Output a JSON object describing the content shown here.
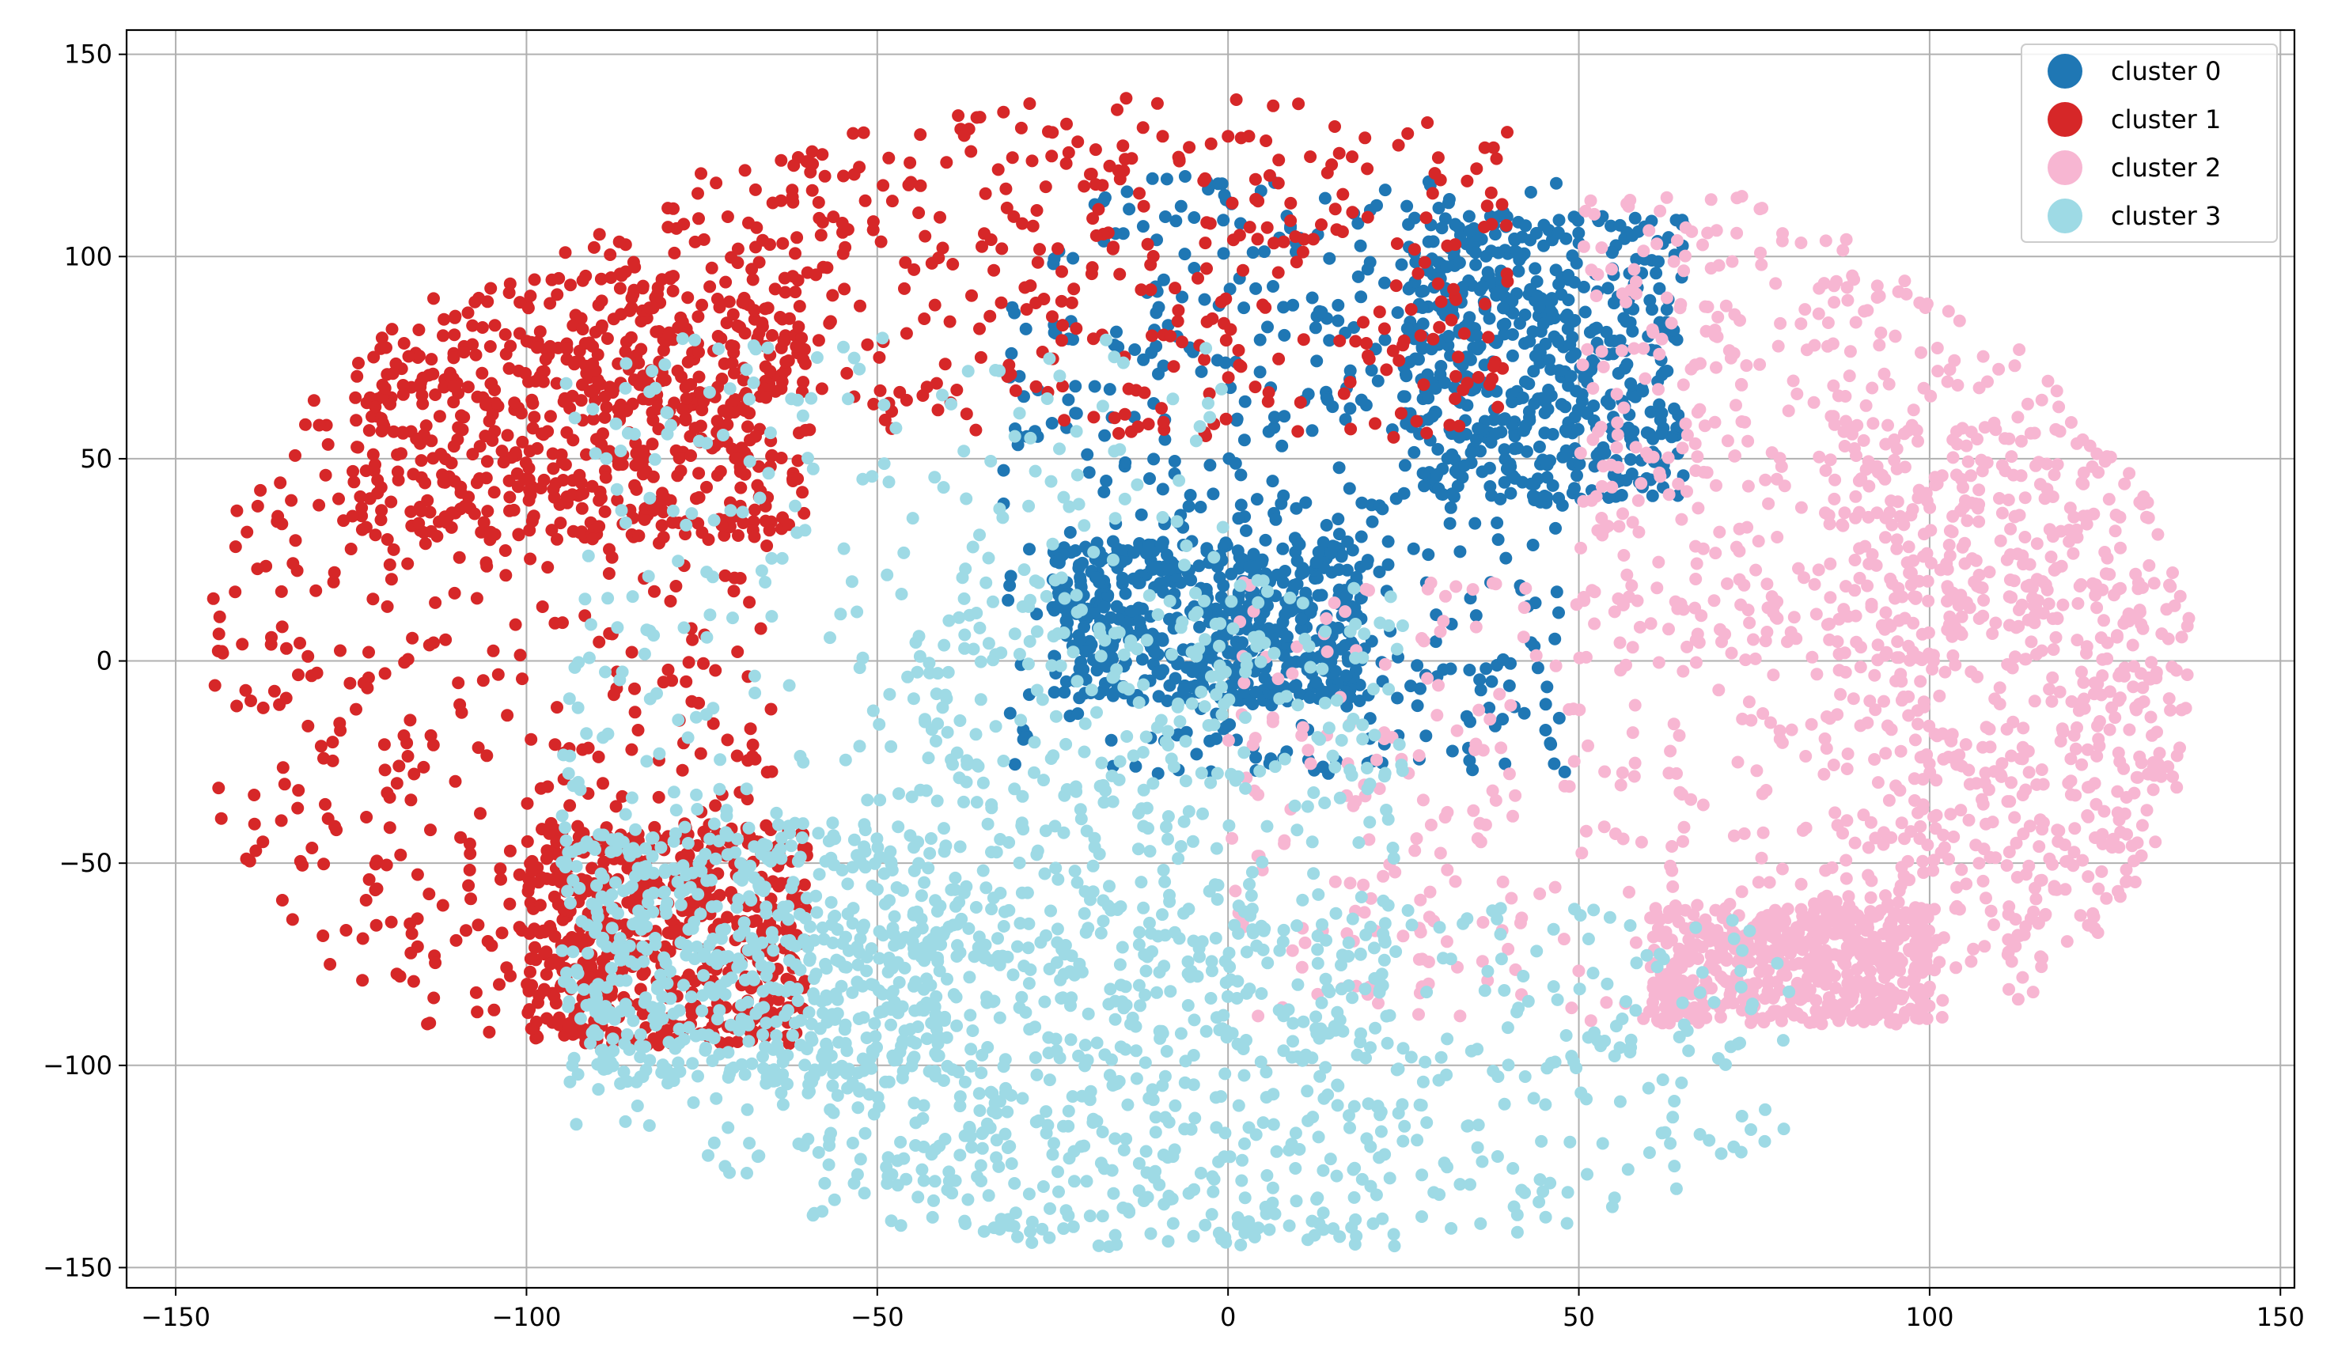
{
  "chart_data": {
    "type": "scatter",
    "title": "",
    "xlabel": "",
    "ylabel": "",
    "xlim": [
      -157,
      152
    ],
    "ylim": [
      -155,
      156
    ],
    "x_ticks": [
      -150,
      -100,
      -50,
      0,
      50,
      100,
      150
    ],
    "y_ticks": [
      -150,
      -100,
      -50,
      0,
      50,
      100,
      150
    ],
    "x_tick_labels": [
      "−150",
      "−100",
      "−50",
      "0",
      "50",
      "100",
      "150"
    ],
    "y_tick_labels": [
      "−150",
      "−100",
      "−50",
      "0",
      "50",
      "100",
      "150"
    ],
    "grid": true,
    "legend_position": "top-right",
    "series": [
      {
        "name": "cluster 0",
        "color": "#1f77b4",
        "regions": [
          {
            "x": [
              -32,
              48
            ],
            "y": [
              -28,
              120
            ]
          },
          {
            "x": [
              25,
              65
            ],
            "y": [
              40,
              110
            ]
          },
          {
            "x": [
              -25,
              20
            ],
            "y": [
              -10,
              30
            ]
          }
        ]
      },
      {
        "name": "cluster 1",
        "color": "#d62728",
        "regions": [
          {
            "x": [
              -145,
              -65
            ],
            "y": [
              -92,
              78
            ]
          },
          {
            "x": [
              -95,
              40
            ],
            "y": [
              55,
              140
            ]
          },
          {
            "x": [
              -125,
              -60
            ],
            "y": [
              30,
              95
            ]
          },
          {
            "x": [
              -100,
              -60
            ],
            "y": [
              -95,
              -40
            ]
          }
        ]
      },
      {
        "name": "cluster 2",
        "color": "#f7b6d2",
        "regions": [
          {
            "x": [
              0,
              137
            ],
            "y": [
              -90,
              20
            ]
          },
          {
            "x": [
              50,
              130
            ],
            "y": [
              0,
              115
            ]
          },
          {
            "x": [
              85,
              137
            ],
            "y": [
              -75,
              60
            ]
          },
          {
            "x": [
              60,
              100
            ],
            "y": [
              -90,
              -60
            ]
          }
        ]
      },
      {
        "name": "cluster 3",
        "color": "#9edae5",
        "regions": [
          {
            "x": [
              -95,
              0
            ],
            "y": [
              -130,
              80
            ]
          },
          {
            "x": [
              -60,
              80
            ],
            "y": [
              -145,
              -60
            ]
          },
          {
            "x": [
              -45,
              25
            ],
            "y": [
              -145,
              20
            ]
          },
          {
            "x": [
              -95,
              -40
            ],
            "y": [
              -105,
              -40
            ]
          }
        ]
      }
    ]
  }
}
